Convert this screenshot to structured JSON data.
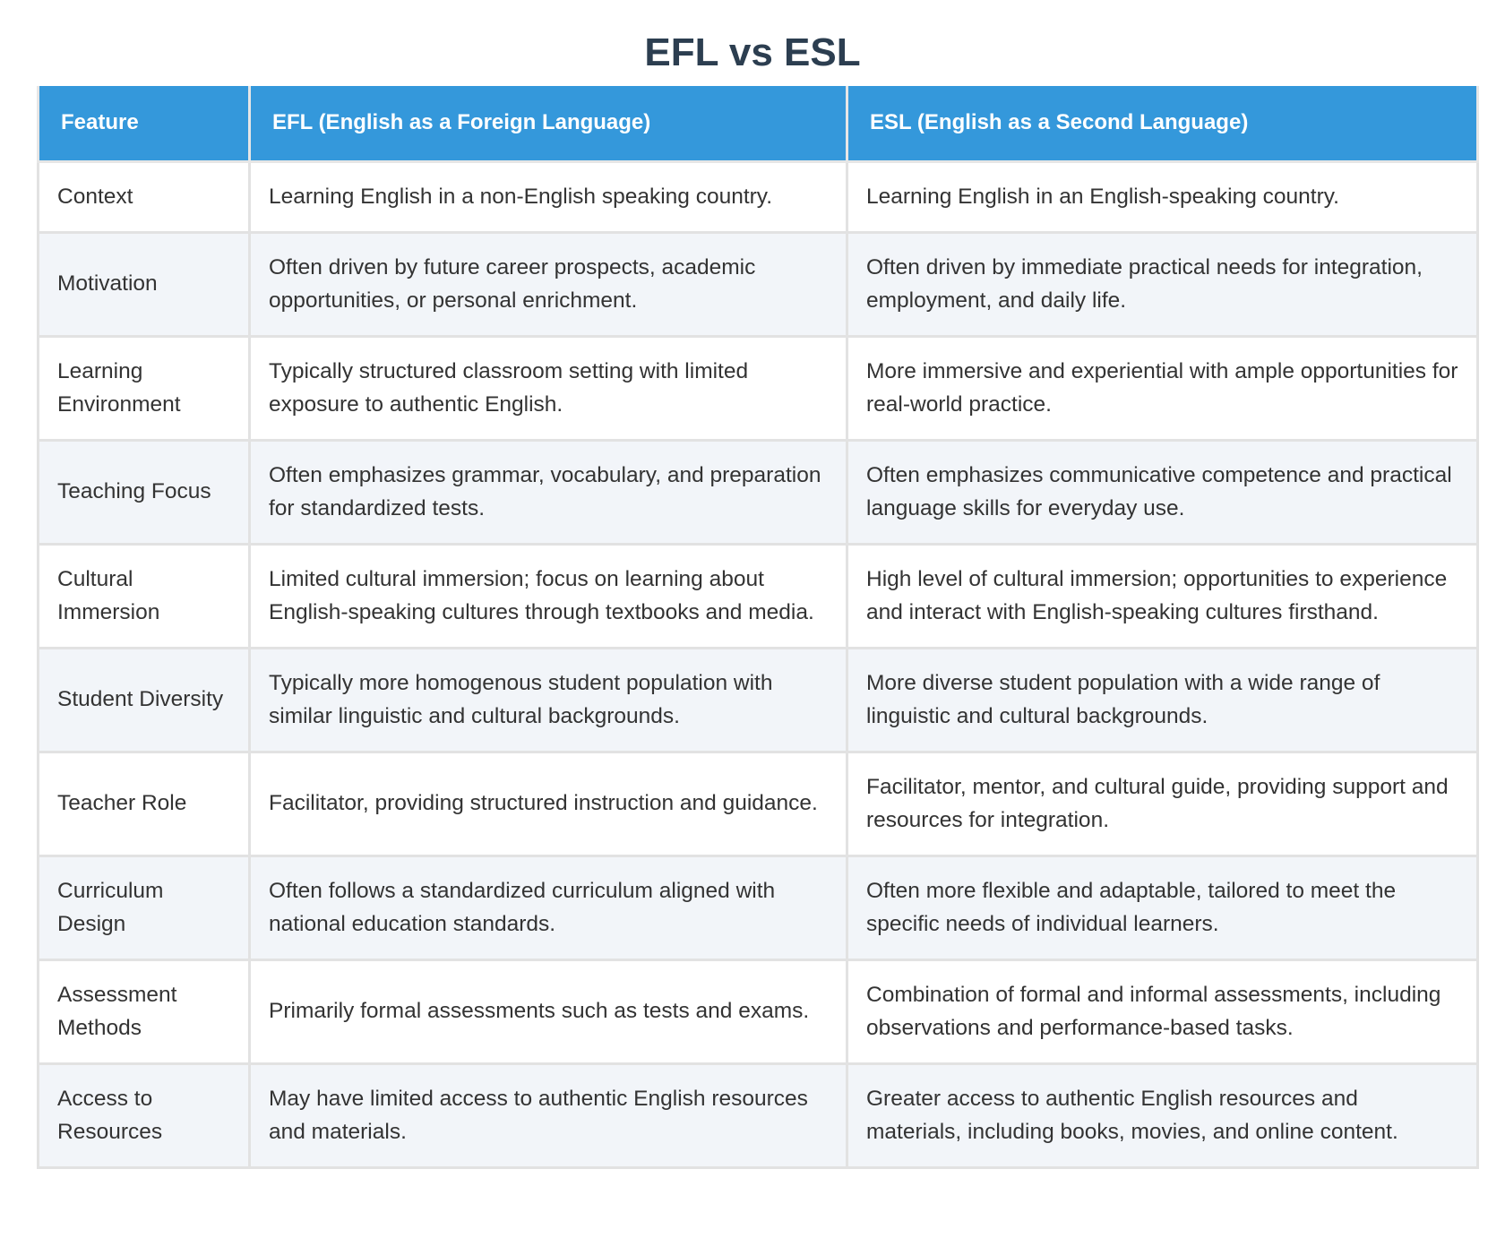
{
  "header": {
    "title": "EFL vs ESL"
  },
  "table": {
    "columns": [
      "Feature",
      "EFL (English as a Foreign Language)",
      "ESL (English as a Second Language)"
    ],
    "rows": [
      [
        "Context",
        "Learning English in a non-English speaking country.",
        "Learning English in an English-speaking country."
      ],
      [
        "Motivation",
        "Often driven by future career prospects, academic opportunities, or personal enrichment.",
        "Often driven by immediate practical needs for integration, employment, and daily life."
      ],
      [
        "Learning Environment",
        "Typically structured classroom setting with limited exposure to authentic English.",
        "More immersive and experiential with ample opportunities for real-world practice."
      ],
      [
        "Teaching Focus",
        "Often emphasizes grammar, vocabulary, and preparation for standardized tests.",
        "Often emphasizes communicative competence and practical language skills for everyday use."
      ],
      [
        "Cultural Immersion",
        "Limited cultural immersion; focus on learning about English-speaking cultures through textbooks and media.",
        "High level of cultural immersion; opportunities to experience and interact with English-speaking cultures firsthand."
      ],
      [
        "Student Diversity",
        "Typically more homogenous student population with similar linguistic and cultural backgrounds.",
        "More diverse student population with a wide range of linguistic and cultural backgrounds."
      ],
      [
        "Teacher Role",
        "Facilitator, providing structured instruction and guidance.",
        "Facilitator, mentor, and cultural guide, providing support and resources for integration."
      ],
      [
        "Curriculum Design",
        "Often follows a standardized curriculum aligned with national education standards.",
        "Often more flexible and adaptable, tailored to meet the specific needs of individual learners."
      ],
      [
        "Assessment Methods",
        "Primarily formal assessments such as tests and exams.",
        "Combination of formal and informal assessments, including observations and performance-based tasks."
      ],
      [
        "Access to Resources",
        "May have limited access to authentic English resources and materials.",
        "Greater access to authentic English resources and materials, including books, movies, and online content."
      ]
    ]
  }
}
